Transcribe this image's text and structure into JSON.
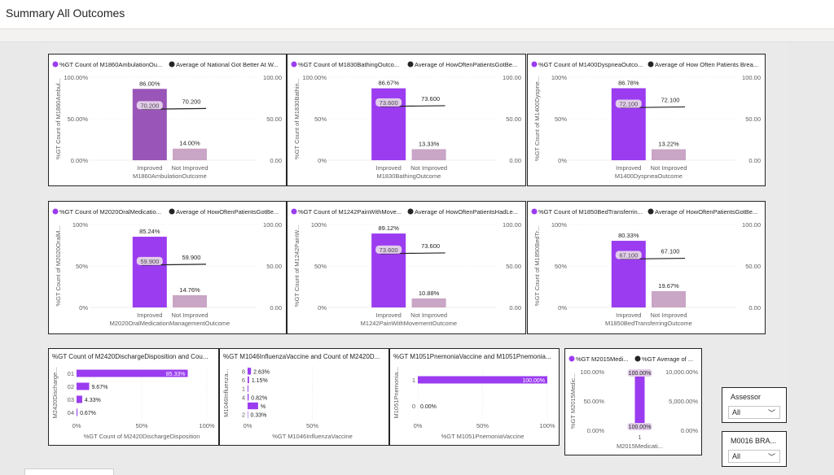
{
  "page": {
    "title": "Summary All Outcomes"
  },
  "colors": {
    "primary": "#9b3cf0",
    "primary_dark": "#9a55b8",
    "secondary": "#c9a5c6",
    "avg_line": "#252423",
    "grid": "#e1dfdd",
    "axis_text": "#605e5c",
    "legend_dot_dark": "#252423"
  },
  "combo_charts": [
    {
      "legend_bar": "%GT Count of M1860AmbulationOu...",
      "legend_line": "Average of National Got Better At W...",
      "ylabel_left": "%GT Count of M1860Ambul...",
      "left_ticks": [
        "100.00%",
        "50.00%",
        "0.00%"
      ],
      "right_ticks": [
        "100.00",
        "50.00",
        "0.00"
      ],
      "xlabel": "M1860AmbulationOutcome",
      "categories": [
        "Improved",
        "Not Improved"
      ],
      "values_pct": [
        86.0,
        14.0
      ],
      "bar_labels": [
        "86.00%",
        "14.00%"
      ],
      "avg_value": 70.2,
      "avg_labels": [
        "70.200",
        "70.200"
      ]
    },
    {
      "legend_bar": "%GT Count of M1830BathingOutco...",
      "legend_line": "Average of HowOftenPatientsGotBe...",
      "ylabel_left": "%GT Count of M1830Bathin...",
      "left_ticks": [
        "100.00%",
        "50%",
        "0%"
      ],
      "right_ticks": [
        "100.00",
        "50.00",
        "0.00"
      ],
      "xlabel": "M1830BathingOutcome",
      "categories": [
        "Improved",
        "Not Improved"
      ],
      "values_pct": [
        86.67,
        13.33
      ],
      "bar_labels": [
        "86.67%",
        "13.33%"
      ],
      "avg_value": 73.6,
      "avg_labels": [
        "73.600",
        "73.600"
      ]
    },
    {
      "legend_bar": "%GT Count of M1400DyspneaOutco...",
      "legend_line": "Average of How Often Patients Brea...",
      "ylabel_left": "%GT Count of M1400Dyspne...",
      "left_ticks": [
        "100%",
        "50%",
        "0%"
      ],
      "right_ticks": [
        "100.00",
        "50.00",
        "0.00"
      ],
      "xlabel": "M1400DyspneaOutcome",
      "categories": [
        "Improved",
        "Not Improved"
      ],
      "values_pct": [
        86.78,
        13.22
      ],
      "bar_labels": [
        "86.78%",
        "13.22%"
      ],
      "avg_value": 72.1,
      "avg_labels": [
        "72.100",
        "72.100"
      ]
    },
    {
      "legend_bar": "%GT Count of M2020OralMedicatio...",
      "legend_line": "Average of HowOftenPatientsGotBe...",
      "ylabel_left": "%GT Count of M2020OralM...",
      "left_ticks": [
        "100%",
        "50%",
        "0%"
      ],
      "right_ticks": [
        "100.00",
        "50.00",
        "0.00"
      ],
      "xlabel": "M2020OralMedicationManagementOutcome",
      "categories": [
        "Improved",
        "Not Improved"
      ],
      "values_pct": [
        85.24,
        14.76
      ],
      "bar_labels": [
        "85.24%",
        "14.76%"
      ],
      "avg_value": 59.9,
      "avg_labels": [
        "59.900",
        "59.900"
      ]
    },
    {
      "legend_bar": "%GT Count of M1242PainWithMove...",
      "legend_line": "Average of HowOftenPatientsHadLe...",
      "ylabel_left": "%GT Count of M1242PainW...",
      "left_ticks": [
        "100%",
        "50%",
        "0%"
      ],
      "right_ticks": [
        "100.00",
        "50.00",
        "0.00"
      ],
      "xlabel": "M1242PainWithMovementOutcome",
      "categories": [
        "Improved",
        "Not Improved"
      ],
      "values_pct": [
        89.12,
        10.88
      ],
      "bar_labels": [
        "89.12%",
        "10.88%"
      ],
      "avg_value": 73.6,
      "avg_labels": [
        "73.600",
        "73.600"
      ]
    },
    {
      "legend_bar": "%GT Count of M1850BedTransferrin...",
      "legend_line": "Average of HowOftenPatientsGotBe...",
      "ylabel_left": "%GT Count of M1850BedTr...",
      "left_ticks": [
        "100%",
        "50%",
        "0%"
      ],
      "right_ticks": [
        "100.00",
        "50.00",
        "0.00"
      ],
      "xlabel": "M1850BedTransferringOutcome",
      "categories": [
        "Improved",
        "Not Improved"
      ],
      "values_pct": [
        80.33,
        19.67
      ],
      "bar_labels": [
        "80.33%",
        "19.67%"
      ],
      "avg_value": 67.1,
      "avg_labels": [
        "67.100",
        "67.100"
      ]
    }
  ],
  "hbar_charts": [
    {
      "title": "%GT Count of M2420DischargeDisposition and Cou...",
      "ylabel": "M2420Discharge...",
      "xlabel": "%GT Count of M2420DischargeDisposition",
      "x_ticks": [
        "0%",
        "50%",
        "100%"
      ],
      "categories": [
        "01",
        "02",
        "03",
        "04"
      ],
      "values_pct": [
        85.33,
        9.67,
        4.33,
        0.67
      ],
      "labels": [
        "85.33%",
        "9.67%",
        "4.33%",
        "0.67%"
      ]
    },
    {
      "title": "%GT M1046InfluenzaVaccine and Count of M2420D...",
      "ylabel": "M1046Influenza...",
      "xlabel": "%GT M1046InfluenzaVaccine",
      "x_ticks": [
        "0%",
        "50%"
      ],
      "categories": [
        "8",
        "6",
        "1",
        "4",
        "",
        "2"
      ],
      "values_pct": [
        2.63,
        1.15,
        0.6,
        0.82,
        8.1,
        0.33
      ],
      "labels": [
        "2.63%",
        "1.15%",
        "",
        "0.82%",
        "%",
        "0.33%"
      ]
    },
    {
      "title": "%GT M1051PnemoniaVaccine and M1051Pnemonia...",
      "ylabel": "M1051Pnemonia...",
      "xlabel": "%GT M1051PnemoniaVaccine",
      "x_ticks": [
        "0%",
        "50%",
        "100%"
      ],
      "categories": [
        "1",
        "0"
      ],
      "values_pct": [
        100.0,
        0.0
      ],
      "labels": [
        "100.00%",
        "0.00%"
      ]
    }
  ],
  "small_combo": {
    "legend_bar": "%GT M2015Medi...",
    "legend_line": "%GT Average of ...",
    "ylabel": "%GT M2015Medic...",
    "left_ticks": [
      "100.00%",
      "50.00%",
      "0.00%"
    ],
    "right_ticks": [
      "10,000.00%",
      "5,000.00%",
      "0.00%"
    ],
    "category": "1",
    "xlabel": "M2015Medicati...",
    "value_pct": 100.0,
    "bar_labels": [
      "100.00%",
      "100.00%"
    ]
  },
  "slicers": [
    {
      "title": "Assessor",
      "value": "All"
    },
    {
      "title": "M0016 BRA...",
      "value": "All"
    }
  ]
}
